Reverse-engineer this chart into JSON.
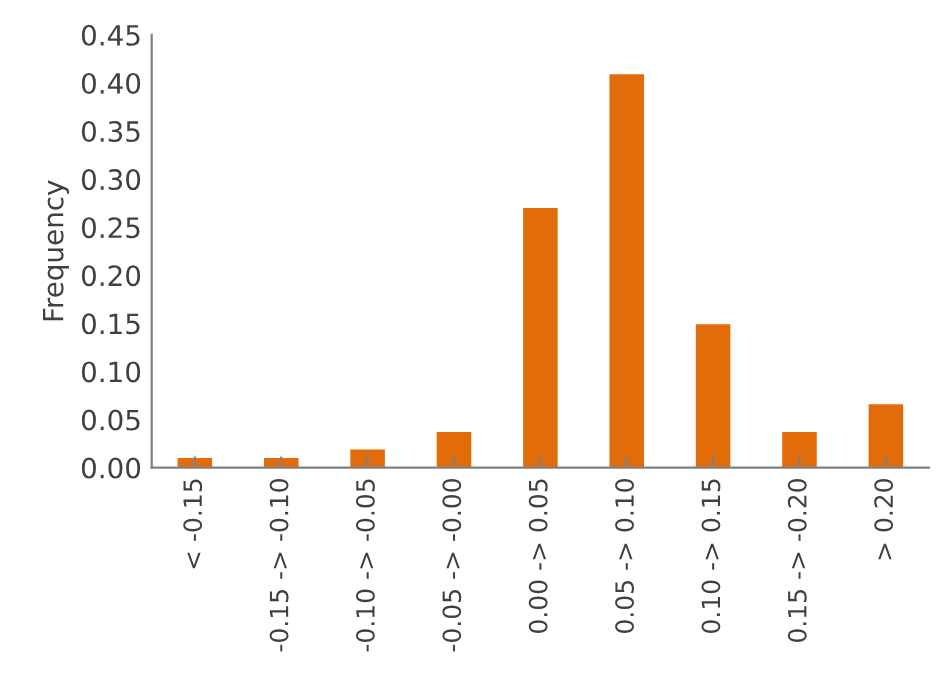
{
  "chart_data": {
    "type": "bar",
    "ylabel": "Frequency",
    "categories": [
      "< -0.15",
      "-0.15 -> -0.10",
      "-0.10 -> -0.05",
      "-0.05 -> -0.00",
      "0.00 -> 0.05",
      "0.05 -> 0.10",
      "0.10 -> 0.15",
      "0.15 -> -0.20",
      "> 0.20"
    ],
    "values": [
      0.01,
      0.01,
      0.019,
      0.037,
      0.27,
      0.409,
      0.149,
      0.037,
      0.066
    ],
    "color": "#e36c0a",
    "ylim": [
      0,
      0.45
    ],
    "yticks": [
      {
        "value": 0,
        "label": "0.00"
      },
      {
        "value": 0.05,
        "label": "0.05"
      },
      {
        "value": 0.1,
        "label": "0.10"
      },
      {
        "value": 0.15,
        "label": "0.15"
      },
      {
        "value": 0.2,
        "label": "0.20"
      },
      {
        "value": 0.25,
        "label": "0.25"
      },
      {
        "value": 0.3,
        "label": "0.30"
      },
      {
        "value": 0.35,
        "label": "0.35"
      },
      {
        "value": 0.4,
        "label": "0.40"
      },
      {
        "value": 0.45,
        "label": "0.45"
      }
    ],
    "grid": false,
    "legend": false
  }
}
